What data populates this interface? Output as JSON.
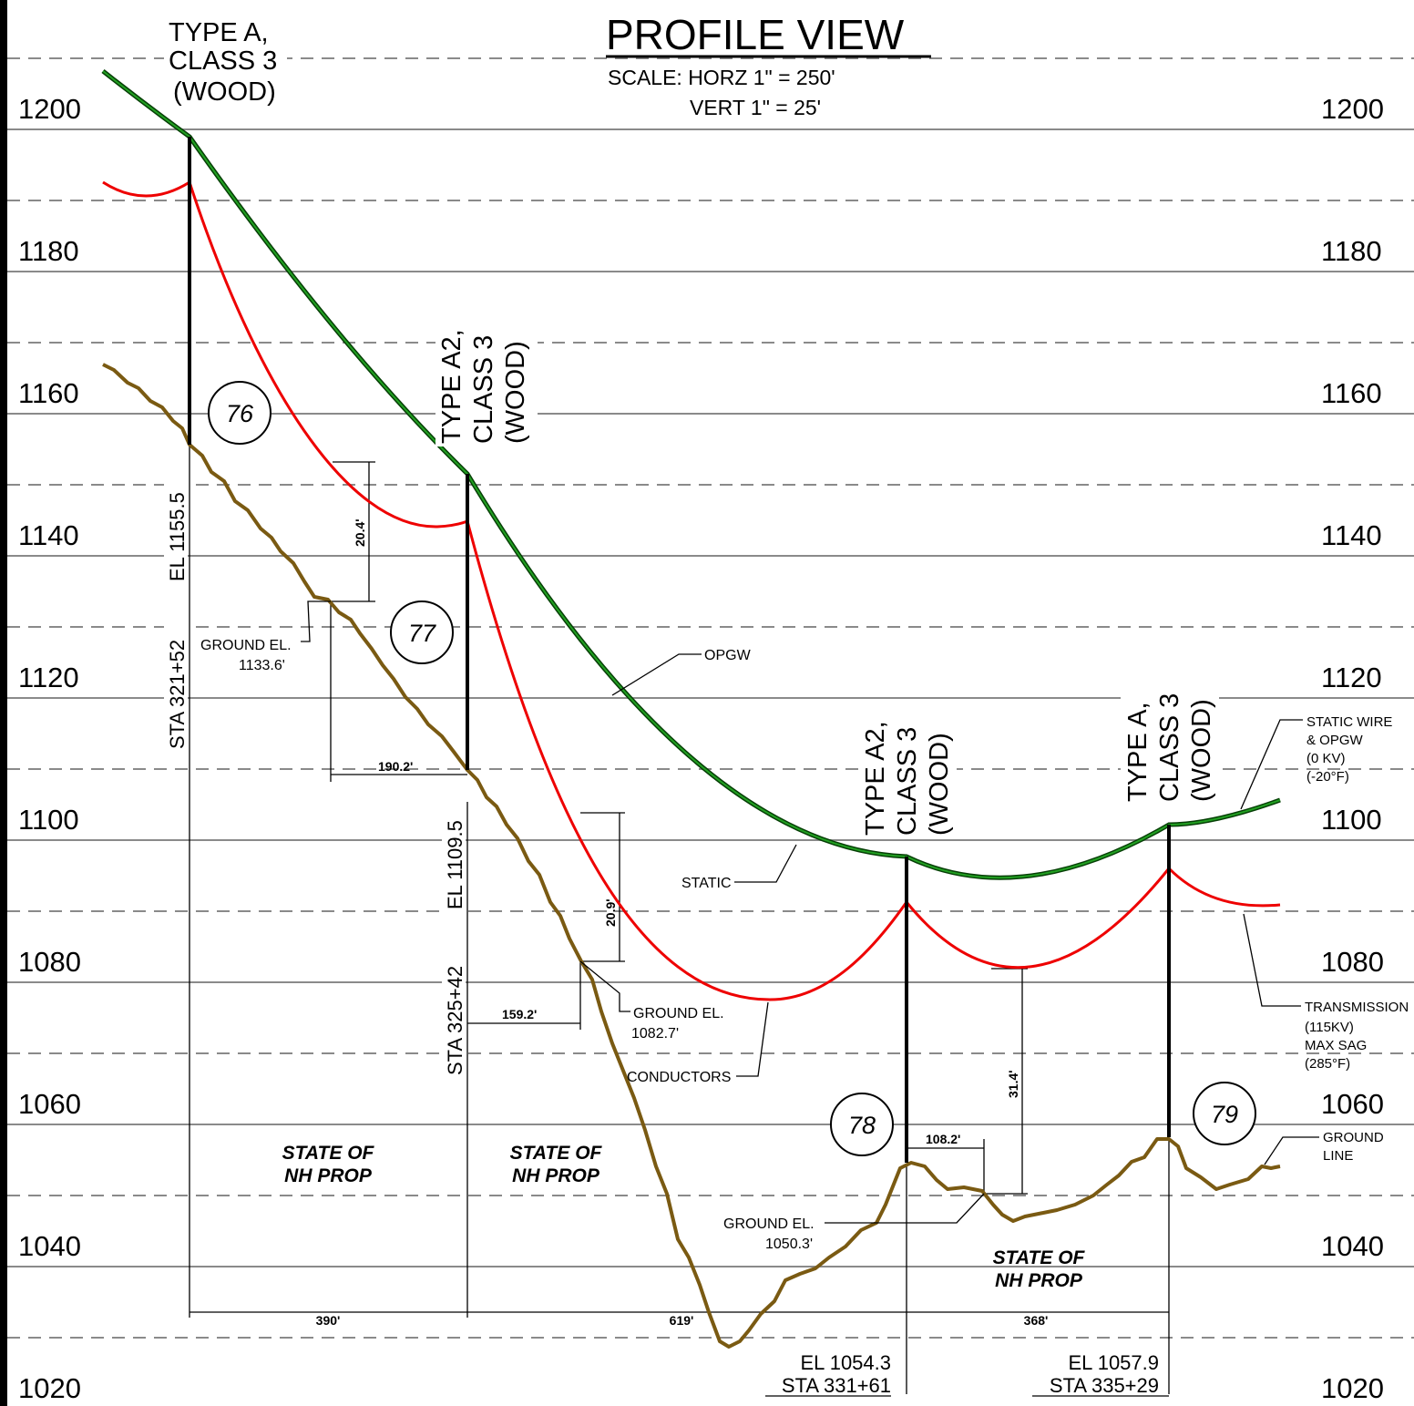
{
  "header": {
    "title": "PROFILE VIEW",
    "scale": [
      "SCALE: HORZ 1\" = 250'",
      "VERT 1\" = 25'"
    ]
  },
  "elevations": [
    "1200",
    "1180",
    "1160",
    "1140",
    "1120",
    "1100",
    "1080",
    "1060",
    "1040",
    "1020"
  ],
  "structures": [
    {
      "number": "76",
      "type": [
        "TYPE A,",
        "CLASS 3",
        "(WOOD)"
      ],
      "el": "EL 1155.5",
      "sta": "STA 321+52"
    },
    {
      "number": "77",
      "type": [
        "TYPE A2,",
        "CLASS 3",
        "(WOOD)"
      ],
      "el": "EL 1109.5",
      "sta": "STA 325+42"
    },
    {
      "number": "78",
      "type": [
        "TYPE A2,",
        "CLASS 3",
        "(WOOD)"
      ],
      "el": "EL 1054.3",
      "sta": "STA 331+61"
    },
    {
      "number": "79",
      "type": [
        "TYPE A,",
        "CLASS 3",
        "(WOOD)"
      ],
      "el": "EL 1057.9",
      "sta": "STA 335+29"
    }
  ],
  "clearances": [
    {
      "clearance": "20.4'",
      "offset": "190.2'",
      "ground": [
        "GROUND EL.",
        "1133.6'"
      ]
    },
    {
      "clearance": "20.9'",
      "offset": "159.2'",
      "ground": [
        "GROUND EL.",
        "1082.7'"
      ]
    },
    {
      "clearance": "31.4'",
      "offset": "108.2'",
      "ground": [
        "GROUND EL.",
        "1050.3'"
      ]
    }
  ],
  "spans": [
    "390'",
    "619'",
    "368'"
  ],
  "property": [
    [
      "STATE OF",
      "NH PROP"
    ],
    [
      "STATE OF",
      "NH PROP"
    ],
    [
      "STATE OF",
      "NH PROP"
    ]
  ],
  "callouts": {
    "opgw": "OPGW",
    "static": "STATIC",
    "conductors": "CONDUCTORS",
    "static_wire": [
      "STATIC WIRE",
      "& OPGW",
      "(0 KV)",
      "(-20°F)"
    ],
    "transmission": [
      "TRANSMISSION",
      "(115KV)",
      "MAX SAG",
      "(285°F)"
    ],
    "ground_line": [
      "GROUND",
      "LINE"
    ]
  }
}
